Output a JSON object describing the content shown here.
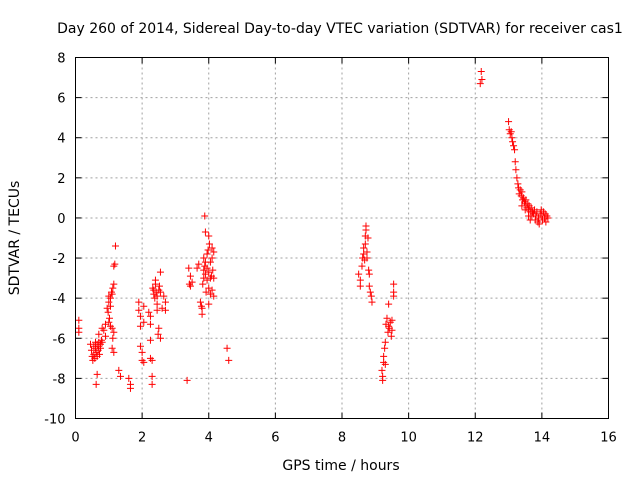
{
  "chart_data": {
    "type": "scatter",
    "title": "Day 260 of 2014, Sidereal Day-to-day VTEC variation (SDTVAR) for receiver cas1",
    "xlabel": "GPS time / hours",
    "ylabel": "SDTVAR / TECUs",
    "xlim": [
      0,
      16
    ],
    "ylim": [
      -10,
      8
    ],
    "xticks": [
      0,
      2,
      4,
      6,
      8,
      10,
      12,
      14,
      16
    ],
    "yticks": [
      -10,
      -8,
      -6,
      -4,
      -2,
      0,
      2,
      4,
      6,
      8
    ],
    "xtick_labels": [
      "0",
      "2",
      "4",
      "6",
      "8",
      "10",
      "12",
      "14",
      "16"
    ],
    "ytick_labels": [
      "-10",
      "-8",
      "-6",
      "-4",
      "-2",
      "0",
      "2",
      "4",
      "6",
      "8"
    ],
    "grid": true,
    "marker": "+",
    "color": "#ff0000",
    "series": [
      {
        "name": "SDTVAR",
        "points": [
          [
            0.1,
            -5.1
          ],
          [
            0.1,
            -5.5
          ],
          [
            0.1,
            -5.7
          ],
          [
            0.45,
            -6.3
          ],
          [
            0.48,
            -6.6
          ],
          [
            0.5,
            -6.9
          ],
          [
            0.52,
            -7.1
          ],
          [
            0.55,
            -6.4
          ],
          [
            0.55,
            -6.8
          ],
          [
            0.58,
            -7.0
          ],
          [
            0.6,
            -6.2
          ],
          [
            0.6,
            -6.5
          ],
          [
            0.62,
            -6.7
          ],
          [
            0.62,
            -8.3
          ],
          [
            0.65,
            -6.3
          ],
          [
            0.65,
            -6.9
          ],
          [
            0.68,
            -6.6
          ],
          [
            0.7,
            -6.2
          ],
          [
            0.7,
            -6.4
          ],
          [
            0.72,
            -6.8
          ],
          [
            0.75,
            -6.3
          ],
          [
            0.75,
            -6.5
          ],
          [
            0.78,
            -6.1
          ],
          [
            0.8,
            -6.2
          ],
          [
            0.65,
            -7.8
          ],
          [
            0.7,
            -5.8
          ],
          [
            0.8,
            -5.5
          ],
          [
            0.85,
            -5.6
          ],
          [
            0.9,
            -5.9
          ],
          [
            0.9,
            -5.3
          ],
          [
            0.95,
            -4.5
          ],
          [
            0.98,
            -4.7
          ],
          [
            1.0,
            -4.2
          ],
          [
            1.0,
            -3.9
          ],
          [
            1.02,
            -5.0
          ],
          [
            1.05,
            -4.4
          ],
          [
            1.05,
            -4.0
          ],
          [
            1.08,
            -3.7
          ],
          [
            1.1,
            -3.8
          ],
          [
            1.1,
            -5.5
          ],
          [
            1.12,
            -3.5
          ],
          [
            1.15,
            -3.3
          ],
          [
            1.15,
            -5.7
          ],
          [
            1.12,
            -6.0
          ],
          [
            1.1,
            -6.5
          ],
          [
            1.15,
            -6.7
          ],
          [
            1.15,
            -2.4
          ],
          [
            1.18,
            -2.3
          ],
          [
            1.2,
            -1.4
          ],
          [
            1.05,
            -5.4
          ],
          [
            1.0,
            -5.2
          ],
          [
            1.3,
            -7.6
          ],
          [
            1.35,
            -7.9
          ],
          [
            1.6,
            -8.0
          ],
          [
            1.65,
            -8.3
          ],
          [
            1.65,
            -8.5
          ],
          [
            1.9,
            -4.2
          ],
          [
            1.9,
            -4.6
          ],
          [
            1.95,
            -4.9
          ],
          [
            1.95,
            -5.4
          ],
          [
            1.95,
            -6.4
          ],
          [
            2.0,
            -6.7
          ],
          [
            2.0,
            -7.1
          ],
          [
            2.05,
            -4.4
          ],
          [
            2.05,
            -5.2
          ],
          [
            2.05,
            -7.2
          ],
          [
            2.2,
            -4.7
          ],
          [
            2.25,
            -4.9
          ],
          [
            2.25,
            -5.3
          ],
          [
            2.25,
            -6.1
          ],
          [
            2.25,
            -7.0
          ],
          [
            2.3,
            -7.1
          ],
          [
            2.3,
            -7.9
          ],
          [
            2.3,
            -8.3
          ],
          [
            2.32,
            -3.5
          ],
          [
            2.35,
            -3.6
          ],
          [
            2.35,
            -3.8
          ],
          [
            2.38,
            -4.0
          ],
          [
            2.4,
            -3.3
          ],
          [
            2.4,
            -3.1
          ],
          [
            2.42,
            -3.7
          ],
          [
            2.45,
            -4.3
          ],
          [
            2.45,
            -4.6
          ],
          [
            2.45,
            -3.9
          ],
          [
            2.48,
            -5.8
          ],
          [
            2.5,
            -5.5
          ],
          [
            2.5,
            -3.6
          ],
          [
            2.52,
            -3.4
          ],
          [
            2.55,
            -3.7
          ],
          [
            2.55,
            -2.7
          ],
          [
            2.55,
            -6.0
          ],
          [
            2.6,
            -4.5
          ],
          [
            2.65,
            -3.9
          ],
          [
            2.7,
            -4.6
          ],
          [
            2.7,
            -4.2
          ],
          [
            3.35,
            -8.1
          ],
          [
            3.4,
            -2.5
          ],
          [
            3.42,
            -3.3
          ],
          [
            3.45,
            -3.4
          ],
          [
            3.45,
            -2.9
          ],
          [
            3.5,
            -3.2
          ],
          [
            3.65,
            -2.5
          ],
          [
            3.7,
            -2.3
          ],
          [
            3.75,
            -4.2
          ],
          [
            3.78,
            -4.4
          ],
          [
            3.8,
            -4.8
          ],
          [
            3.8,
            -4.5
          ],
          [
            3.82,
            -3.3
          ],
          [
            3.85,
            -3.0
          ],
          [
            3.85,
            -2.6
          ],
          [
            3.85,
            -2.0
          ],
          [
            3.88,
            -2.4
          ],
          [
            3.9,
            -2.8
          ],
          [
            3.9,
            -2.2
          ],
          [
            3.9,
            -0.7
          ],
          [
            3.92,
            -3.7
          ],
          [
            3.95,
            -1.8
          ],
          [
            3.95,
            -2.5
          ],
          [
            3.95,
            -3.1
          ],
          [
            3.98,
            -1.6
          ],
          [
            4.0,
            -2.7
          ],
          [
            4.0,
            -3.5
          ],
          [
            4.0,
            -4.3
          ],
          [
            4.02,
            -1.3
          ],
          [
            4.05,
            -2.2
          ],
          [
            4.05,
            -3.8
          ],
          [
            4.05,
            -3.0
          ],
          [
            4.08,
            -2.9
          ],
          [
            4.1,
            -1.5
          ],
          [
            4.1,
            -2.0
          ],
          [
            4.1,
            -3.6
          ],
          [
            4.12,
            -2.6
          ],
          [
            4.15,
            -1.7
          ],
          [
            4.15,
            -3.0
          ],
          [
            4.15,
            -3.9
          ],
          [
            3.88,
            0.1
          ],
          [
            4.0,
            -0.9
          ],
          [
            4.55,
            -6.5
          ],
          [
            4.6,
            -7.1
          ],
          [
            8.5,
            -2.8
          ],
          [
            8.55,
            -3.1
          ],
          [
            8.55,
            -3.4
          ],
          [
            8.6,
            -2.4
          ],
          [
            8.62,
            -2.0
          ],
          [
            8.65,
            -1.8
          ],
          [
            8.65,
            -1.5
          ],
          [
            8.68,
            -2.1
          ],
          [
            8.7,
            -1.3
          ],
          [
            8.7,
            -0.9
          ],
          [
            8.72,
            -0.4
          ],
          [
            8.72,
            -0.6
          ],
          [
            8.75,
            -1.7
          ],
          [
            8.75,
            -2.0
          ],
          [
            8.78,
            -1.0
          ],
          [
            8.8,
            -2.6
          ],
          [
            8.82,
            -2.8
          ],
          [
            8.82,
            -3.4
          ],
          [
            8.85,
            -3.7
          ],
          [
            8.88,
            -3.9
          ],
          [
            8.9,
            -4.2
          ],
          [
            9.2,
            -7.6
          ],
          [
            9.22,
            -7.9
          ],
          [
            9.22,
            -8.1
          ],
          [
            9.25,
            -7.2
          ],
          [
            9.25,
            -6.9
          ],
          [
            9.28,
            -6.5
          ],
          [
            9.3,
            -6.2
          ],
          [
            9.3,
            -7.3
          ],
          [
            9.32,
            -5.3
          ],
          [
            9.35,
            -5.0
          ],
          [
            9.38,
            -5.7
          ],
          [
            9.4,
            -5.4
          ],
          [
            9.4,
            -4.3
          ],
          [
            9.42,
            -5.5
          ],
          [
            9.45,
            -5.2
          ],
          [
            9.48,
            -5.9
          ],
          [
            9.5,
            -5.6
          ],
          [
            9.5,
            -5.1
          ],
          [
            9.55,
            -3.9
          ],
          [
            9.55,
            -3.7
          ],
          [
            9.55,
            -3.3
          ],
          [
            12.15,
            6.7
          ],
          [
            12.18,
            7.3
          ],
          [
            12.2,
            6.9
          ],
          [
            13.0,
            4.8
          ],
          [
            13.02,
            4.4
          ],
          [
            13.05,
            4.2
          ],
          [
            13.08,
            4.3
          ],
          [
            13.1,
            4.0
          ],
          [
            13.12,
            3.8
          ],
          [
            13.15,
            3.6
          ],
          [
            13.18,
            3.4
          ],
          [
            13.2,
            2.8
          ],
          [
            13.22,
            2.4
          ],
          [
            13.25,
            2.0
          ],
          [
            13.28,
            1.7
          ],
          [
            13.3,
            1.5
          ],
          [
            13.32,
            1.2
          ],
          [
            13.35,
            1.4
          ],
          [
            13.38,
            1.1
          ],
          [
            13.4,
            1.3
          ],
          [
            13.42,
            0.9
          ],
          [
            13.45,
            1.0
          ],
          [
            13.48,
            0.8
          ],
          [
            13.5,
            0.7
          ],
          [
            13.52,
            0.9
          ],
          [
            13.55,
            0.5
          ],
          [
            13.58,
            0.7
          ],
          [
            13.6,
            0.4
          ],
          [
            13.62,
            0.6
          ],
          [
            13.65,
            0.3
          ],
          [
            13.68,
            0.5
          ],
          [
            13.7,
            0.1
          ],
          [
            13.72,
            0.3
          ],
          [
            13.75,
            0.2
          ],
          [
            13.78,
            0.4
          ],
          [
            13.8,
            -0.1
          ],
          [
            13.82,
            0.1
          ],
          [
            13.85,
            0.3
          ],
          [
            13.88,
            -0.2
          ],
          [
            13.9,
            0.0
          ],
          [
            13.92,
            -0.3
          ],
          [
            13.95,
            0.2
          ],
          [
            13.98,
            0.4
          ],
          [
            14.0,
            0.1
          ],
          [
            14.02,
            -0.1
          ],
          [
            14.05,
            0.3
          ],
          [
            14.08,
            0.0
          ],
          [
            14.1,
            0.2
          ],
          [
            14.12,
            -0.2
          ],
          [
            14.15,
            0.1
          ],
          [
            14.18,
            0.0
          ],
          [
            13.5,
            0.4
          ],
          [
            13.4,
            0.6
          ],
          [
            13.6,
            0.1
          ],
          [
            13.65,
            -0.1
          ]
        ]
      }
    ]
  }
}
